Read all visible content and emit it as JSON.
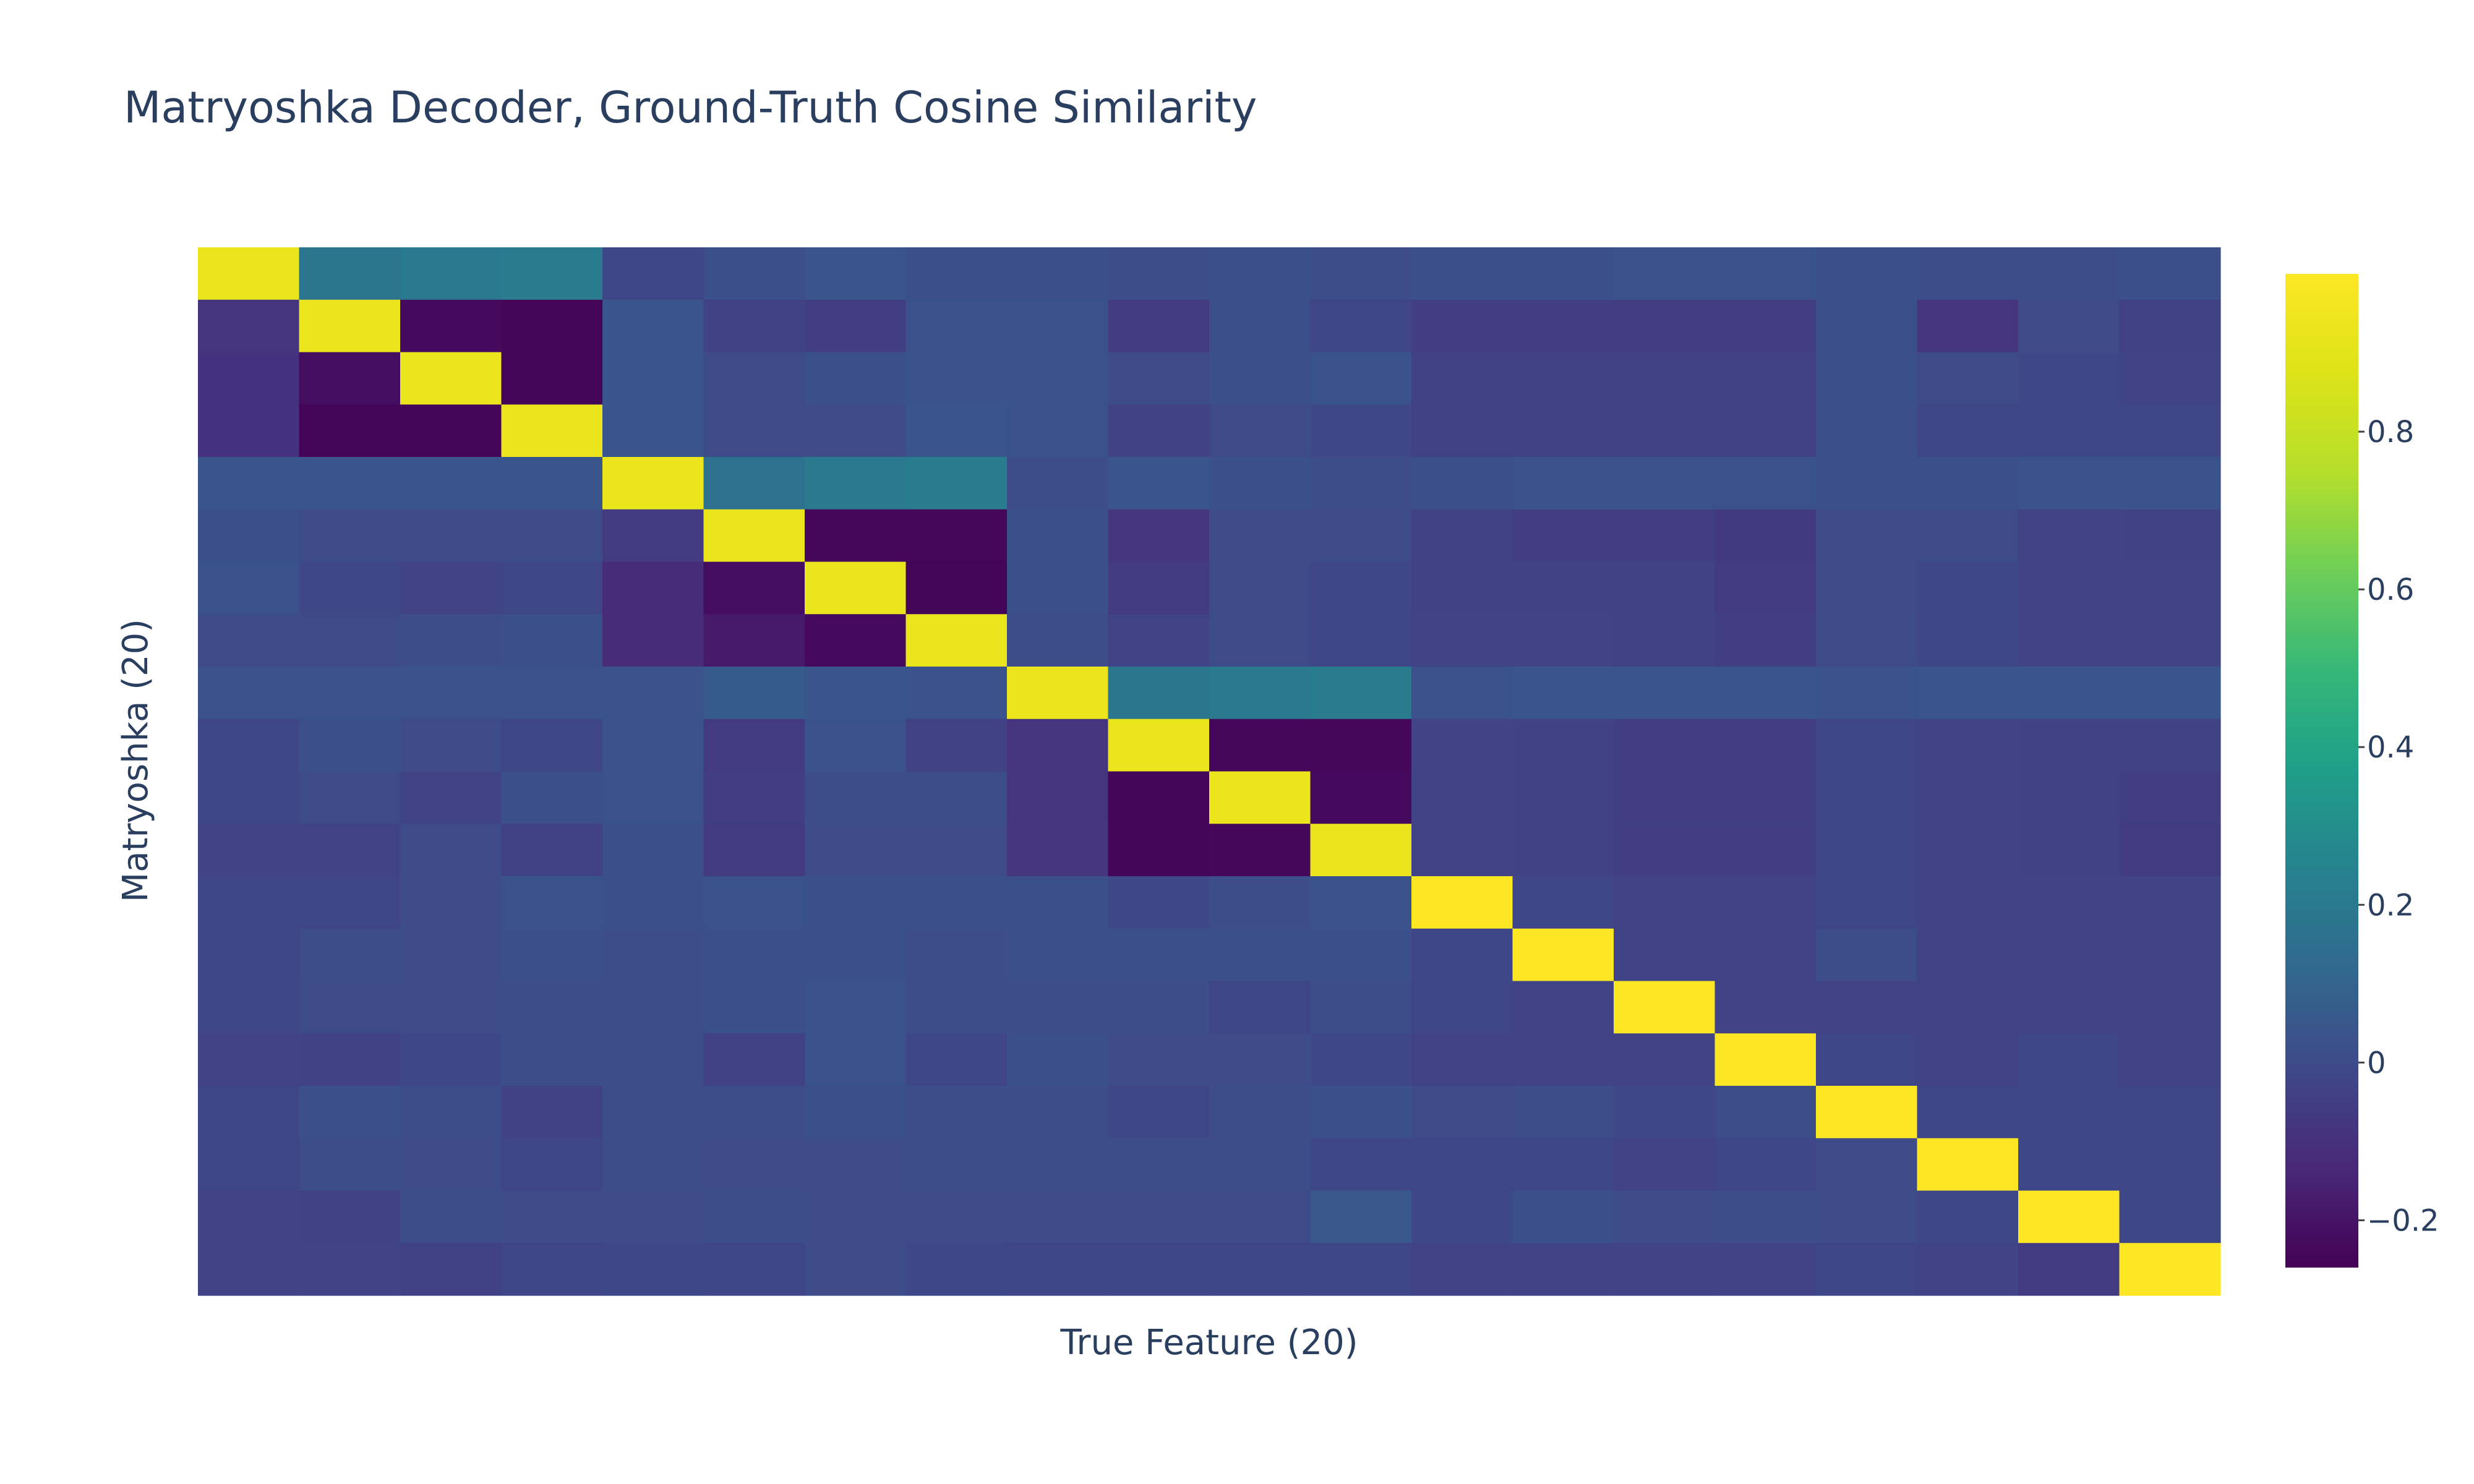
{
  "chart_data": {
    "type": "heatmap",
    "title": "Matryoshka Decoder, Ground-Truth Cosine Similarity",
    "xlabel": "True Feature (20)",
    "ylabel": "Matryoshka (20)",
    "colorscale": "viridis",
    "zmin": -0.26,
    "zmax": 1.0,
    "colorbar_ticks": [
      {
        "value": 0.8,
        "label": "0.8"
      },
      {
        "value": 0.6,
        "label": "0.6"
      },
      {
        "value": 0.4,
        "label": "0.4"
      },
      {
        "value": 0.2,
        "label": "0.2"
      },
      {
        "value": 0,
        "label": "0"
      },
      {
        "value": -0.2,
        "label": "−0.2"
      }
    ],
    "z": [
      [
        0.92,
        0.18,
        0.2,
        0.21,
        -0.02,
        0.02,
        0.04,
        0.02,
        0.02,
        0.01,
        0.02,
        0.01,
        0.02,
        0.02,
        0.03,
        0.03,
        0.02,
        0.01,
        0.01,
        0.02
      ],
      [
        -0.09,
        0.93,
        -0.23,
        -0.25,
        0.04,
        -0.04,
        -0.05,
        0.03,
        0.03,
        -0.06,
        0.02,
        -0.02,
        -0.05,
        -0.05,
        -0.05,
        -0.05,
        0.02,
        -0.09,
        0.0,
        -0.04
      ],
      [
        -0.1,
        -0.22,
        0.93,
        -0.25,
        0.04,
        0.0,
        0.02,
        0.03,
        0.03,
        0.0,
        0.02,
        0.03,
        -0.04,
        -0.04,
        -0.04,
        -0.04,
        0.02,
        0.0,
        -0.01,
        -0.03
      ],
      [
        -0.1,
        -0.25,
        -0.25,
        0.93,
        0.04,
        0.0,
        0.0,
        0.04,
        0.03,
        -0.04,
        0.0,
        -0.01,
        -0.04,
        -0.04,
        -0.04,
        -0.04,
        0.02,
        -0.02,
        -0.01,
        -0.02
      ],
      [
        0.04,
        0.04,
        0.04,
        0.04,
        0.93,
        0.16,
        0.2,
        0.21,
        0.01,
        0.04,
        0.02,
        0.01,
        0.02,
        0.03,
        0.03,
        0.03,
        0.02,
        0.02,
        0.03,
        0.03
      ],
      [
        0.02,
        0.0,
        0.0,
        0.0,
        -0.06,
        0.93,
        -0.24,
        -0.24,
        0.02,
        -0.08,
        0.0,
        0.0,
        -0.04,
        -0.05,
        -0.05,
        -0.07,
        0.0,
        0.0,
        -0.03,
        -0.04
      ],
      [
        0.03,
        -0.01,
        -0.03,
        -0.02,
        -0.12,
        -0.22,
        0.93,
        -0.25,
        0.02,
        -0.06,
        0.0,
        -0.02,
        -0.04,
        -0.04,
        -0.04,
        -0.06,
        0.0,
        -0.01,
        -0.03,
        -0.03
      ],
      [
        0.0,
        0.0,
        0.01,
        0.02,
        -0.12,
        -0.18,
        -0.23,
        0.93,
        0.01,
        -0.03,
        0.0,
        -0.02,
        -0.03,
        -0.03,
        -0.04,
        -0.05,
        0.0,
        -0.02,
        -0.03,
        -0.03
      ],
      [
        0.03,
        0.03,
        0.03,
        0.03,
        0.03,
        0.06,
        0.04,
        0.03,
        0.93,
        0.18,
        0.2,
        0.21,
        0.03,
        0.04,
        0.04,
        0.04,
        0.03,
        0.04,
        0.04,
        0.04
      ],
      [
        -0.02,
        0.02,
        0.0,
        -0.02,
        0.03,
        -0.06,
        0.03,
        -0.04,
        -0.09,
        0.93,
        -0.24,
        -0.24,
        -0.03,
        -0.04,
        -0.05,
        -0.05,
        -0.02,
        -0.03,
        -0.04,
        -0.04
      ],
      [
        -0.02,
        0.0,
        -0.03,
        0.02,
        0.03,
        -0.05,
        0.01,
        0.01,
        -0.09,
        -0.25,
        0.93,
        -0.23,
        -0.03,
        -0.04,
        -0.05,
        -0.05,
        -0.02,
        -0.03,
        -0.04,
        -0.05
      ],
      [
        -0.03,
        -0.03,
        0.0,
        -0.04,
        0.02,
        -0.06,
        0.0,
        0.0,
        -0.08,
        -0.25,
        -0.24,
        0.93,
        -0.03,
        -0.04,
        -0.05,
        -0.05,
        -0.02,
        -0.03,
        -0.04,
        -0.06
      ],
      [
        -0.02,
        -0.02,
        0.0,
        0.03,
        0.02,
        0.03,
        0.02,
        0.02,
        0.02,
        -0.01,
        0.01,
        0.03,
        1.0,
        -0.02,
        -0.03,
        -0.03,
        -0.02,
        -0.03,
        -0.03,
        -0.03
      ],
      [
        -0.02,
        0.01,
        0.0,
        0.02,
        0.01,
        0.02,
        0.02,
        0.01,
        0.02,
        0.02,
        0.02,
        0.02,
        -0.02,
        1.0,
        -0.03,
        -0.03,
        0.01,
        -0.03,
        -0.03,
        -0.03
      ],
      [
        -0.02,
        0.0,
        0.0,
        0.01,
        0.01,
        0.02,
        0.03,
        0.01,
        0.01,
        0.01,
        -0.02,
        0.01,
        -0.02,
        -0.03,
        1.0,
        -0.03,
        -0.03,
        -0.03,
        -0.03,
        -0.03
      ],
      [
        -0.03,
        -0.04,
        -0.01,
        0.01,
        0.01,
        -0.04,
        0.03,
        -0.02,
        0.02,
        0.0,
        0.0,
        -0.01,
        -0.03,
        -0.03,
        -0.03,
        1.0,
        -0.02,
        -0.03,
        -0.02,
        -0.03
      ],
      [
        -0.02,
        0.02,
        0.01,
        -0.04,
        0.01,
        0.01,
        0.02,
        0.01,
        0.01,
        -0.02,
        0.01,
        0.02,
        0.0,
        0.01,
        -0.01,
        0.01,
        1.0,
        -0.02,
        -0.02,
        -0.02
      ],
      [
        -0.02,
        0.01,
        0.0,
        -0.02,
        0.01,
        0.0,
        0.0,
        0.01,
        0.01,
        0.01,
        0.01,
        -0.02,
        -0.02,
        -0.02,
        -0.03,
        -0.02,
        0.0,
        1.0,
        -0.02,
        -0.02
      ],
      [
        -0.03,
        -0.04,
        0.01,
        0.0,
        0.0,
        0.01,
        0.0,
        0.0,
        0.0,
        0.0,
        0.0,
        0.05,
        -0.01,
        0.02,
        0.0,
        0.01,
        0.0,
        -0.02,
        1.0,
        -0.01
      ],
      [
        -0.03,
        -0.03,
        -0.04,
        -0.02,
        -0.01,
        -0.02,
        0.0,
        -0.01,
        -0.02,
        -0.02,
        -0.02,
        -0.02,
        -0.03,
        -0.03,
        -0.03,
        -0.03,
        -0.02,
        -0.03,
        -0.06,
        1.0
      ]
    ]
  }
}
